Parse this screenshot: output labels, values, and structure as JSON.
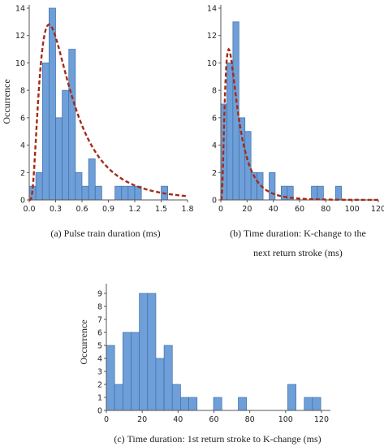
{
  "fit_color": "#a52a16",
  "bar_color": "#6e9fd8",
  "chart_data": [
    {
      "type": "bar",
      "kind": "histogram",
      "caption": "(a) Pulse train duration (ms)",
      "ylabel": "Occurrence",
      "xlim": [
        0,
        1.8
      ],
      "ylim": [
        0,
        14
      ],
      "xticks": [
        "0.0",
        "0.3",
        "0.6",
        "0.9",
        "1.2",
        "1.5",
        "1.8"
      ],
      "yticks": [
        "0",
        "2",
        "4",
        "6",
        "8",
        "10",
        "12",
        "14"
      ],
      "bin_width": 0.075,
      "bin_starts": [
        0.0,
        0.075,
        0.15,
        0.225,
        0.3,
        0.375,
        0.45,
        0.525,
        0.6,
        0.675,
        0.75,
        0.825,
        0.9,
        0.975,
        1.05,
        1.125,
        1.2,
        1.275,
        1.35,
        1.425,
        1.5,
        1.575
      ],
      "values": [
        1,
        2,
        10,
        14,
        6,
        8,
        11,
        2,
        1,
        3,
        1,
        0,
        0,
        1,
        1,
        1,
        1,
        0,
        0,
        0,
        1,
        0
      ],
      "fit": "lognormal",
      "fit_peak": [
        0.225,
        12.8
      ]
    },
    {
      "type": "bar",
      "kind": "histogram",
      "caption_lines": [
        "(b) Time duration: K-change to the",
        "next return stroke (ms)"
      ],
      "ylabel": "",
      "xlim": [
        0,
        120
      ],
      "ylim": [
        0,
        14
      ],
      "xticks": [
        "0",
        "20",
        "40",
        "60",
        "80",
        "100",
        "120"
      ],
      "yticks": [
        "0",
        "2",
        "4",
        "6",
        "8",
        "10",
        "12",
        "14"
      ],
      "bin_width": 4.6,
      "bin_starts": [
        0,
        4.6,
        9.2,
        13.8,
        18.4,
        23.0,
        27.6,
        32.2,
        36.8,
        41.4,
        46.0,
        50.6,
        55.2,
        59.8,
        64.4,
        69.0,
        73.6,
        78.2,
        82.8,
        87.4
      ],
      "values": [
        7,
        10,
        13,
        6,
        5,
        2,
        2,
        0,
        2,
        0,
        1,
        1,
        0,
        0,
        0,
        1,
        1,
        0,
        0,
        1
      ],
      "fit": "lognormal",
      "fit_peak": [
        6,
        11
      ]
    },
    {
      "type": "bar",
      "kind": "histogram",
      "caption": "(c) Time duration: 1st return stroke to K-change (ms)",
      "ylabel": "Occurrence",
      "xlim": [
        0,
        125
      ],
      "ylim": [
        0,
        9.5
      ],
      "xticks": [
        "0",
        "20",
        "40",
        "60",
        "80",
        "100",
        "120"
      ],
      "yticks": [
        "0",
        "1",
        "2",
        "3",
        "4",
        "5",
        "6",
        "7",
        "8",
        "9"
      ],
      "bin_width": 4.6,
      "bin_starts": [
        0,
        4.6,
        9.2,
        13.8,
        18.4,
        23.0,
        27.6,
        32.2,
        36.8,
        41.4,
        46.0,
        50.6,
        55.2,
        59.8,
        64.4,
        69.0,
        73.6,
        78.2,
        82.8,
        87.4,
        92.0,
        96.6,
        101.2,
        105.8,
        110.4,
        115.0
      ],
      "values": [
        5,
        2,
        6,
        6,
        9,
        9,
        4,
        5,
        2,
        1,
        1,
        0,
        0,
        1,
        0,
        0,
        1,
        0,
        0,
        0,
        0,
        0,
        2,
        0,
        1,
        1
      ]
    }
  ]
}
